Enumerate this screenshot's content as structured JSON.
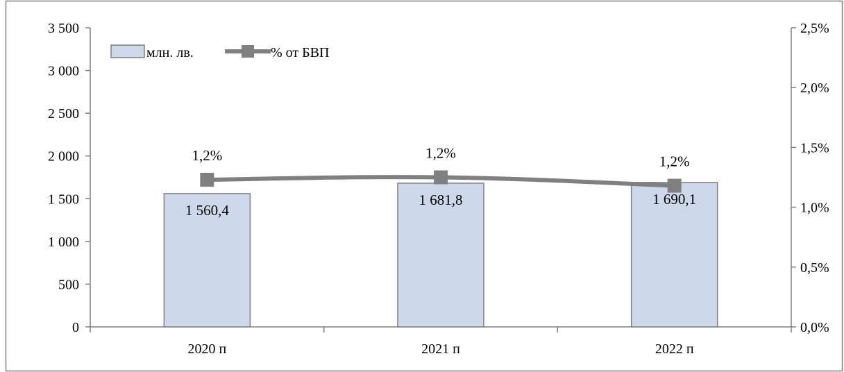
{
  "chart_data": {
    "type": "bar",
    "categories": [
      "2020 п",
      "2021 п",
      "2022 п"
    ],
    "series": [
      {
        "name": "млн. лв.",
        "type": "bar",
        "axis": "left",
        "values": [
          1560.4,
          1681.8,
          1690.1
        ],
        "labels": [
          "1 560,4",
          "1 681,8",
          "1 690,1"
        ]
      },
      {
        "name": "% от БВП",
        "type": "line",
        "axis": "right",
        "values": [
          1.23,
          1.25,
          1.18
        ],
        "labels": [
          "1,2%",
          "1,2%",
          "1,2%"
        ]
      }
    ],
    "y_left": {
      "min": 0,
      "max": 3500,
      "ticks": [
        0,
        500,
        1000,
        1500,
        2000,
        2500,
        3000,
        3500
      ],
      "tick_labels": [
        "0",
        "500",
        "1 000",
        "1 500",
        "2 000",
        "2 500",
        "3 000",
        "3 500"
      ]
    },
    "y_right": {
      "min": 0,
      "max": 2.5,
      "ticks": [
        0,
        0.5,
        1.0,
        1.5,
        2.0,
        2.5
      ],
      "tick_labels": [
        "0,0%",
        "0,5%",
        "1,0%",
        "1,5%",
        "2,0%",
        "2,5%"
      ]
    },
    "grid": false,
    "legend": "top-left",
    "title": "",
    "xlabel": "",
    "ylabel": "",
    "colors": {
      "bar_fill": "#cdd9ea",
      "bar_stroke": "#7f7f7f",
      "line": "#808080",
      "axis": "#7f7f7f",
      "border": "#7f7f7f"
    }
  }
}
